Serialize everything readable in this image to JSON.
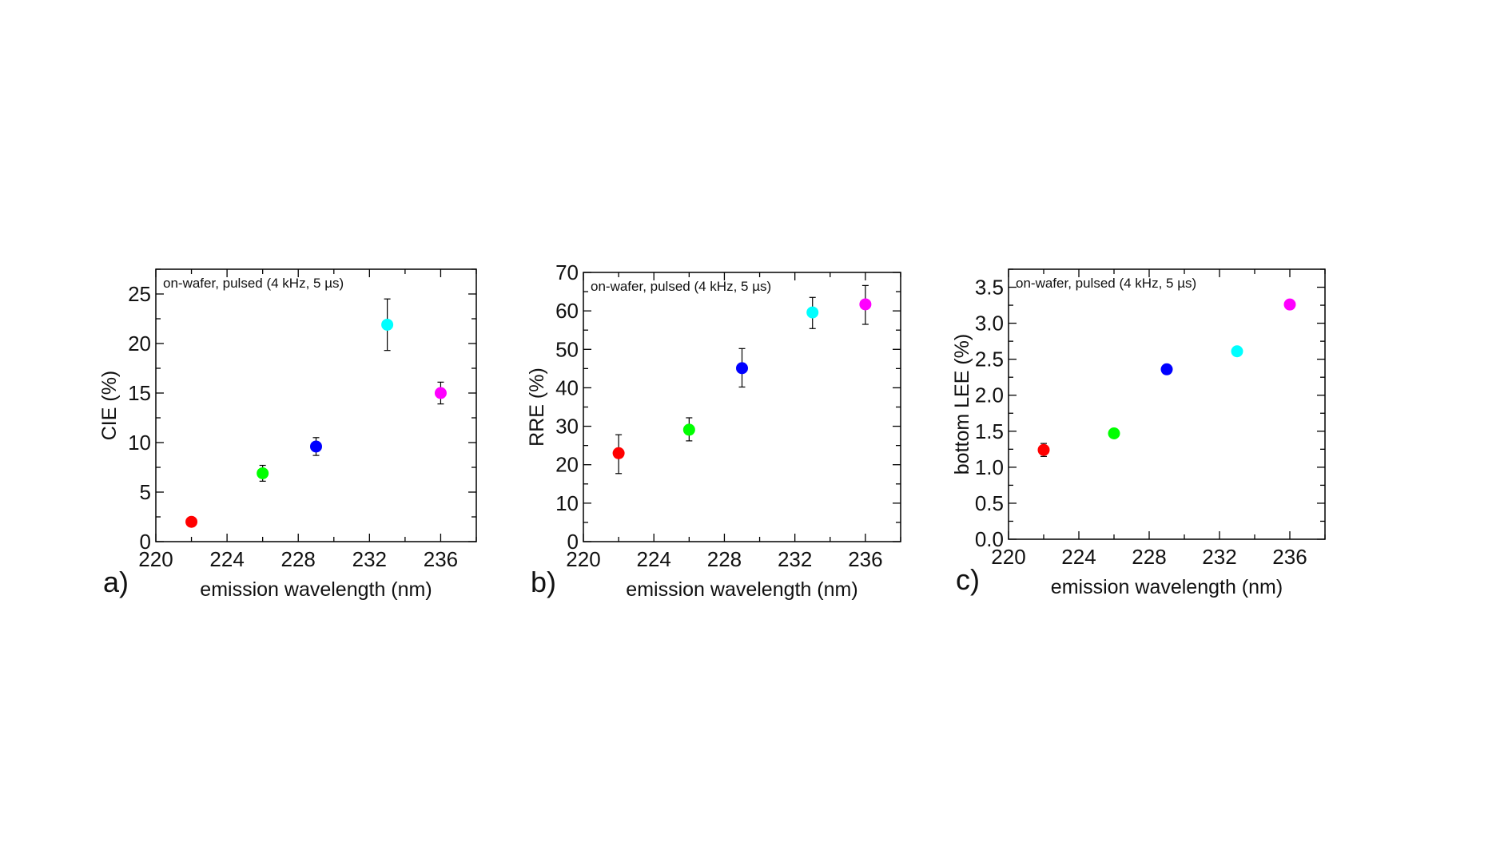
{
  "chart_data": [
    {
      "type": "scatter",
      "panel_label": "a)",
      "annotation": "on-wafer, pulsed (4 kHz, 5 µs)",
      "xlabel": "emission wavelength (nm)",
      "ylabel": "CIE (%)",
      "xlim": [
        220,
        238
      ],
      "ylim": [
        0,
        27.5
      ],
      "xticks": [
        220,
        224,
        228,
        232,
        236
      ],
      "yticks": [
        0,
        5,
        10,
        15,
        20,
        25
      ],
      "ytick_labels": [
        "0",
        "5",
        "10",
        "15",
        "20",
        "25"
      ],
      "points": [
        {
          "x": 222,
          "y": 2.0,
          "err_low": 2.0,
          "err_high": 2.0,
          "color": "#ff0000"
        },
        {
          "x": 226,
          "y": 6.9,
          "err_low": 6.1,
          "err_high": 7.7,
          "color": "#00ff00"
        },
        {
          "x": 229,
          "y": 9.6,
          "err_low": 8.7,
          "err_high": 10.5,
          "color": "#0000ff"
        },
        {
          "x": 233,
          "y": 21.9,
          "err_low": 19.3,
          "err_high": 24.5,
          "color": "#00ffff"
        },
        {
          "x": 236,
          "y": 15.0,
          "err_low": 13.9,
          "err_high": 16.1,
          "color": "#ff00ff"
        }
      ]
    },
    {
      "type": "scatter",
      "panel_label": "b)",
      "annotation": "on-wafer, pulsed (4 kHz, 5 µs)",
      "xlabel": "emission wavelength (nm)",
      "ylabel": "RRE (%)",
      "xlim": [
        220,
        238
      ],
      "ylim": [
        0,
        70
      ],
      "xticks": [
        220,
        224,
        228,
        232,
        236
      ],
      "yticks": [
        0,
        10,
        20,
        30,
        40,
        50,
        60,
        70
      ],
      "ytick_labels": [
        "0",
        "10",
        "20",
        "30",
        "40",
        "50",
        "60",
        "70"
      ],
      "points": [
        {
          "x": 222,
          "y": 23.0,
          "err_low": 17.7,
          "err_high": 27.8,
          "color": "#ff0000"
        },
        {
          "x": 226,
          "y": 29.1,
          "err_low": 26.2,
          "err_high": 32.2,
          "color": "#00ff00"
        },
        {
          "x": 229,
          "y": 45.1,
          "err_low": 40.2,
          "err_high": 50.2,
          "color": "#0000ff"
        },
        {
          "x": 233,
          "y": 59.6,
          "err_low": 55.4,
          "err_high": 63.5,
          "color": "#00ffff"
        },
        {
          "x": 236,
          "y": 61.7,
          "err_low": 56.5,
          "err_high": 66.6,
          "color": "#ff00ff"
        }
      ]
    },
    {
      "type": "scatter",
      "panel_label": "c)",
      "annotation": "on-wafer, pulsed (4 kHz, 5 µs)",
      "xlabel": "emission wavelength (nm)",
      "ylabel": "bottom LEE (%)",
      "xlim": [
        220,
        238
      ],
      "ylim": [
        0,
        3.75
      ],
      "xticks": [
        220,
        224,
        228,
        232,
        236
      ],
      "yticks": [
        0,
        0.5,
        1.0,
        1.5,
        2.0,
        2.5,
        3.0,
        3.5
      ],
      "ytick_labels": [
        "0.0",
        "0.5",
        "1.0",
        "1.5",
        "2.0",
        "2.5",
        "3.0",
        "3.5"
      ],
      "points": [
        {
          "x": 222,
          "y": 1.24,
          "err_low": 1.15,
          "err_high": 1.33,
          "color": "#ff0000"
        },
        {
          "x": 226,
          "y": 1.47,
          "err_low": 1.47,
          "err_high": 1.47,
          "color": "#00ff00"
        },
        {
          "x": 229,
          "y": 2.36,
          "err_low": 2.36,
          "err_high": 2.36,
          "color": "#0000ff"
        },
        {
          "x": 233,
          "y": 2.61,
          "err_low": 2.61,
          "err_high": 2.61,
          "color": "#00ffff"
        },
        {
          "x": 236,
          "y": 3.26,
          "err_low": 3.26,
          "err_high": 3.26,
          "color": "#ff00ff"
        }
      ]
    }
  ]
}
